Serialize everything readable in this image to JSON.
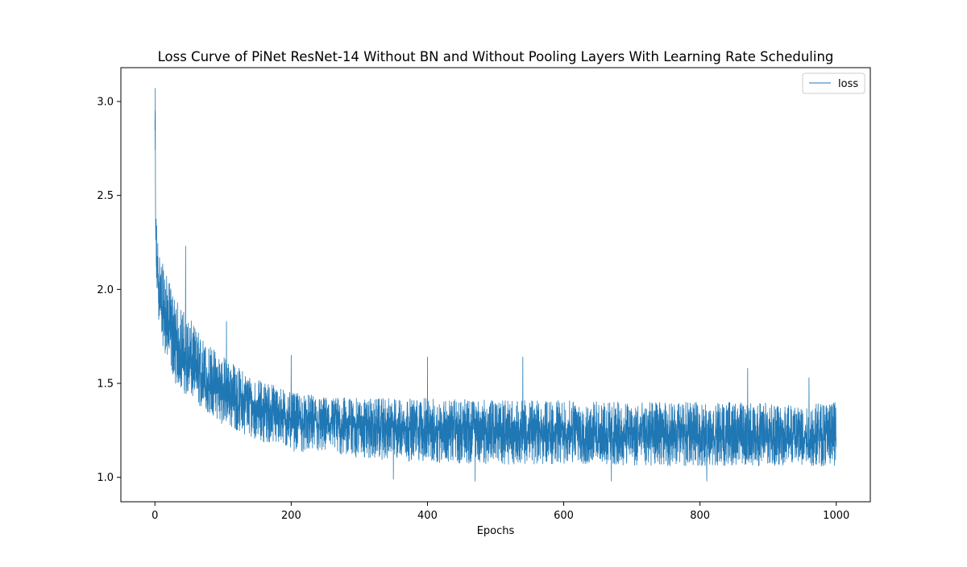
{
  "chart_data": {
    "type": "line",
    "title": "Loss Curve of PiNet ResNet-14 Without BN and Without Pooling Layers With Learning Rate Scheduling",
    "xlabel": "Epochs",
    "ylabel": "",
    "xlim": [
      -50,
      1050
    ],
    "ylim": [
      0.87,
      3.18
    ],
    "x_ticks": [
      0,
      200,
      400,
      600,
      800,
      1000
    ],
    "x_tick_labels": [
      "0",
      "200",
      "400",
      "600",
      "800",
      "1000"
    ],
    "y_ticks": [
      1.0,
      1.5,
      2.0,
      2.5,
      3.0
    ],
    "y_tick_labels": [
      "1.0",
      "1.5",
      "2.0",
      "2.5",
      "3.0"
    ],
    "grid": false,
    "legend_placement": "top-right",
    "series": [
      {
        "name": "loss",
        "color": "#1f77b4",
        "trend": {
          "x": [
            0,
            1,
            2,
            5,
            10,
            20,
            30,
            50,
            75,
            100,
            125,
            150,
            175,
            200,
            250,
            300,
            400,
            500,
            600,
            700,
            800,
            900,
            1000
          ],
          "center": [
            2.9,
            2.35,
            2.2,
            2.0,
            1.88,
            1.78,
            1.7,
            1.6,
            1.5,
            1.45,
            1.41,
            1.37,
            1.34,
            1.3,
            1.28,
            1.27,
            1.25,
            1.24,
            1.23,
            1.22,
            1.22,
            1.21,
            1.21
          ],
          "lower": [
            2.4,
            2.05,
            1.95,
            1.85,
            1.72,
            1.6,
            1.5,
            1.42,
            1.35,
            1.28,
            1.24,
            1.2,
            1.17,
            1.14,
            1.12,
            1.1,
            1.08,
            1.07,
            1.07,
            1.06,
            1.06,
            1.06,
            1.06
          ],
          "upper": [
            3.07,
            2.45,
            2.4,
            2.25,
            2.15,
            2.05,
            1.95,
            1.85,
            1.72,
            1.65,
            1.58,
            1.52,
            1.5,
            1.45,
            1.43,
            1.42,
            1.42,
            1.41,
            1.41,
            1.4,
            1.4,
            1.4,
            1.4
          ]
        },
        "peaks": [
          {
            "x": 0.5,
            "y": 3.07
          },
          {
            "x": 45,
            "y": 2.23
          },
          {
            "x": 105,
            "y": 1.83
          },
          {
            "x": 200,
            "y": 1.65
          },
          {
            "x": 400,
            "y": 1.64
          },
          {
            "x": 540,
            "y": 1.64
          },
          {
            "x": 870,
            "y": 1.58
          },
          {
            "x": 960,
            "y": 1.53
          }
        ],
        "troughs": [
          {
            "x": 350,
            "y": 0.99
          },
          {
            "x": 470,
            "y": 0.98
          },
          {
            "x": 670,
            "y": 0.98
          },
          {
            "x": 810,
            "y": 0.98
          }
        ],
        "final": {
          "x": 1000,
          "y": 1.21
        }
      }
    ]
  }
}
